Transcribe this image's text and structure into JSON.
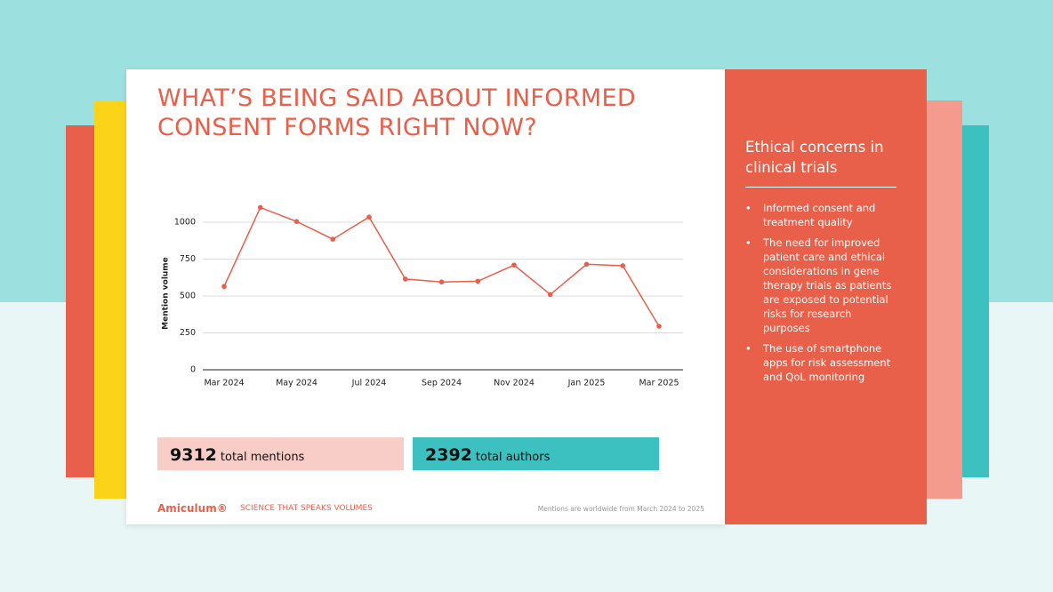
{
  "header": {
    "title": "WHAT’S BEING SAID ABOUT INFORMED CONSENT FORMS RIGHT NOW?"
  },
  "chart_data": {
    "type": "line",
    "y_label": "Mention volume",
    "categories": [
      "Mar 2024",
      null,
      "May 2024",
      null,
      "Jul 2024",
      null,
      "Sep 2024",
      null,
      "Nov 2024",
      null,
      "Jan 2025",
      null,
      "Mar 2025"
    ],
    "values": [
      565,
      1100,
      1005,
      885,
      1035,
      615,
      595,
      600,
      710,
      510,
      715,
      705,
      295
    ],
    "color": "#e8604c",
    "ylim": [
      0,
      1000
    ],
    "yticks": [
      0,
      250,
      500,
      750,
      1000
    ],
    "grid": true
  },
  "stats": [
    {
      "value": 9312,
      "label": "total mentions"
    },
    {
      "value": 2392,
      "label": "total authors"
    }
  ],
  "footer": {
    "brand": "Amiculum®",
    "tagline": "SCIENCE THAT SPEAKS VOLUMES",
    "note": "Mentions are worldwide from March 2024 to 2025"
  },
  "panel": {
    "heading": "Ethical concerns in clinical trials",
    "bullets": [
      "Informed consent and treatment quality",
      "The need for improved patient care and ethical considerations in gene therapy trials as patients are exposed to potential risks for research purposes",
      "The use of smartphone apps for risk assessment and QoL monitoring"
    ]
  }
}
